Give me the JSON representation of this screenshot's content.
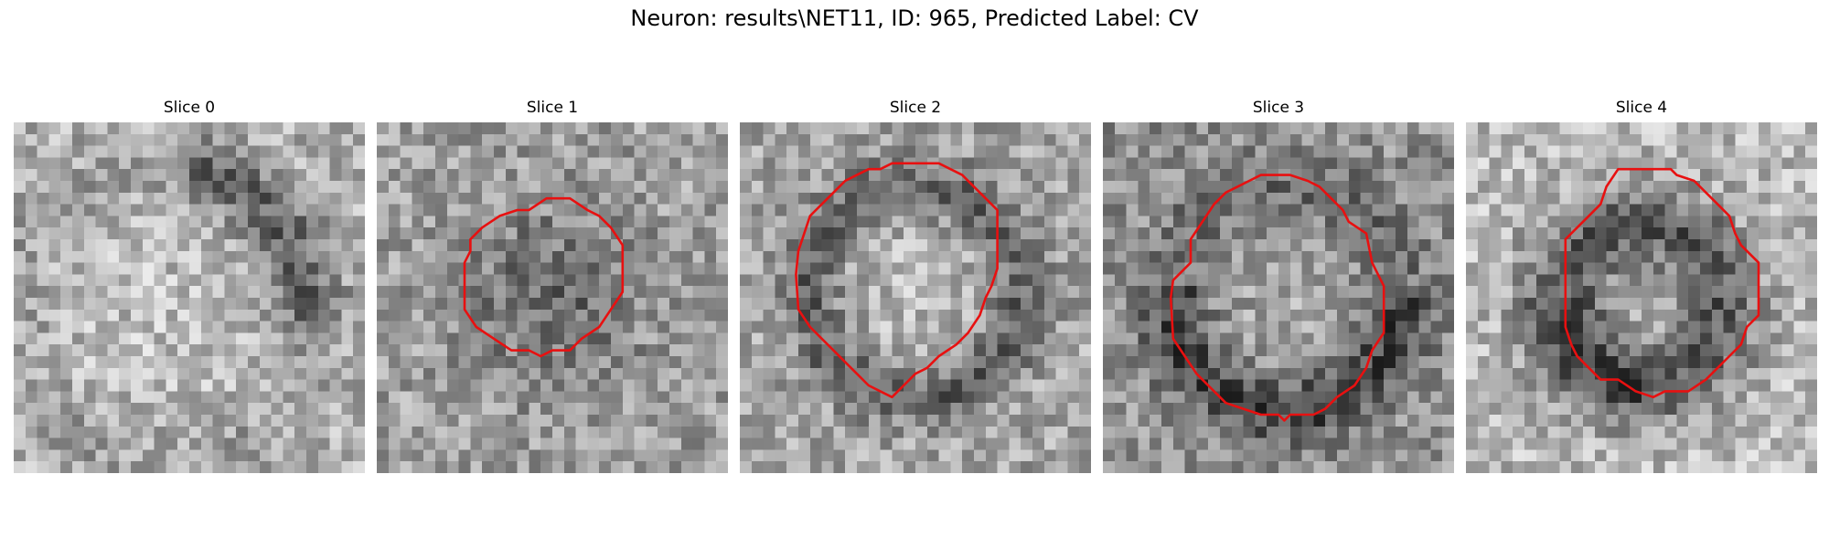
{
  "figure": {
    "title": "Neuron: results\\NET11, ID: 965, Predicted Label: CV",
    "contour_color": "#e81010"
  },
  "panels": [
    {
      "title": "Slice 0",
      "has_contour": false,
      "background_pattern": "noisy-grayscale",
      "dark_region": "upper-right arc"
    },
    {
      "title": "Slice 1",
      "has_contour": true,
      "background_pattern": "noisy-grayscale",
      "dark_region": "inside contour"
    },
    {
      "title": "Slice 2",
      "has_contour": true,
      "background_pattern": "noisy-grayscale",
      "dark_region": "ring around contour"
    },
    {
      "title": "Slice 3",
      "has_contour": true,
      "background_pattern": "noisy-grayscale",
      "dark_region": "lower half"
    },
    {
      "title": "Slice 4",
      "has_contour": true,
      "background_pattern": "noisy-grayscale",
      "dark_region": "ring, darker below-left"
    }
  ]
}
